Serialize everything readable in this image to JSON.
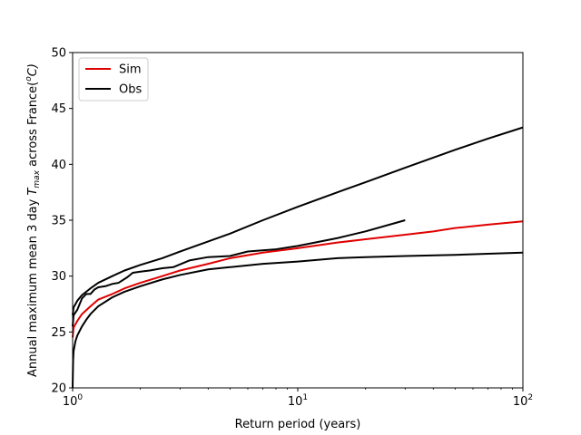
{
  "chart_data": {
    "type": "line",
    "xlabel": "Return period (years)",
    "ylabel": {
      "prefix": "Annual maximum mean 3 day ",
      "symbol": "T",
      "subscript": "max",
      "middle": " across France(",
      "unit_sup": "o",
      "unit": "C)"
    },
    "x_scale": "log",
    "xlim": [
      1,
      100
    ],
    "ylim": [
      20,
      50
    ],
    "x_ticks": [
      {
        "value": 1,
        "base": "10",
        "exp": "0"
      },
      {
        "value": 10,
        "base": "10",
        "exp": "1"
      },
      {
        "value": 100,
        "base": "10",
        "exp": "2"
      }
    ],
    "y_ticks": [
      20,
      25,
      30,
      35,
      40,
      45,
      50
    ],
    "grid": false,
    "legend": {
      "position": "top-left",
      "entries": [
        {
          "label": "Sim",
          "color": "#e00000"
        },
        {
          "label": "Obs",
          "color": "#000000"
        }
      ]
    },
    "series": [
      {
        "name": "Sim",
        "color": "#e00000",
        "x": [
          1.0,
          1.01,
          1.05,
          1.1,
          1.2,
          1.3,
          1.5,
          1.7,
          2.0,
          2.5,
          3.0,
          4.0,
          5.0,
          7.0,
          10.0,
          15.0,
          20.0,
          30.0,
          40.0,
          50.0,
          70.0,
          100.0
        ],
        "y": [
          24.5,
          25.4,
          26.0,
          26.6,
          27.3,
          27.9,
          28.4,
          28.9,
          29.4,
          30.0,
          30.5,
          31.1,
          31.6,
          32.1,
          32.5,
          33.0,
          33.3,
          33.7,
          34.0,
          34.3,
          34.6,
          34.9
        ]
      },
      {
        "name": "Obs upper bound",
        "color": "#000000",
        "x": [
          1.0,
          1.01,
          1.05,
          1.1,
          1.2,
          1.3,
          1.5,
          1.7,
          2.0,
          2.5,
          3.0,
          4.0,
          5.0,
          7.0,
          10.0,
          15.0,
          20.0,
          30.0,
          50.0,
          70.0,
          100.0
        ],
        "y": [
          26.5,
          27.2,
          27.8,
          28.3,
          28.9,
          29.4,
          30.0,
          30.5,
          31.0,
          31.6,
          32.2,
          33.1,
          33.8,
          35.0,
          36.2,
          37.5,
          38.4,
          39.7,
          41.3,
          42.3,
          43.3
        ]
      },
      {
        "name": "Obs",
        "color": "#000000",
        "x": [
          1.0,
          1.01,
          1.05,
          1.1,
          1.15,
          1.2,
          1.25,
          1.3,
          1.4,
          1.5,
          1.6,
          1.75,
          1.85,
          2.0,
          2.2,
          2.5,
          2.8,
          3.3,
          4.0,
          5.0,
          6.0,
          8.0,
          10.0,
          15.0,
          20.0,
          30.0
        ],
        "y": [
          25.5,
          26.5,
          27.0,
          28.0,
          28.4,
          28.4,
          28.8,
          29.0,
          29.1,
          29.3,
          29.4,
          29.9,
          30.3,
          30.4,
          30.5,
          30.7,
          30.8,
          31.4,
          31.7,
          31.8,
          32.2,
          32.4,
          32.7,
          33.4,
          34.0,
          35.0
        ]
      },
      {
        "name": "Obs lower bound",
        "color": "#000000",
        "x": [
          1.0,
          1.005,
          1.01,
          1.03,
          1.05,
          1.1,
          1.15,
          1.2,
          1.3,
          1.5,
          1.7,
          2.0,
          2.5,
          3.0,
          4.0,
          5.0,
          7.0,
          10.0,
          15.0,
          20.0,
          30.0,
          50.0,
          70.0,
          100.0
        ],
        "y": [
          20.0,
          22.5,
          23.3,
          24.2,
          24.7,
          25.5,
          26.1,
          26.6,
          27.3,
          28.1,
          28.6,
          29.1,
          29.7,
          30.1,
          30.6,
          30.8,
          31.1,
          31.3,
          31.6,
          31.7,
          31.8,
          31.9,
          32.0,
          32.1
        ]
      }
    ]
  }
}
